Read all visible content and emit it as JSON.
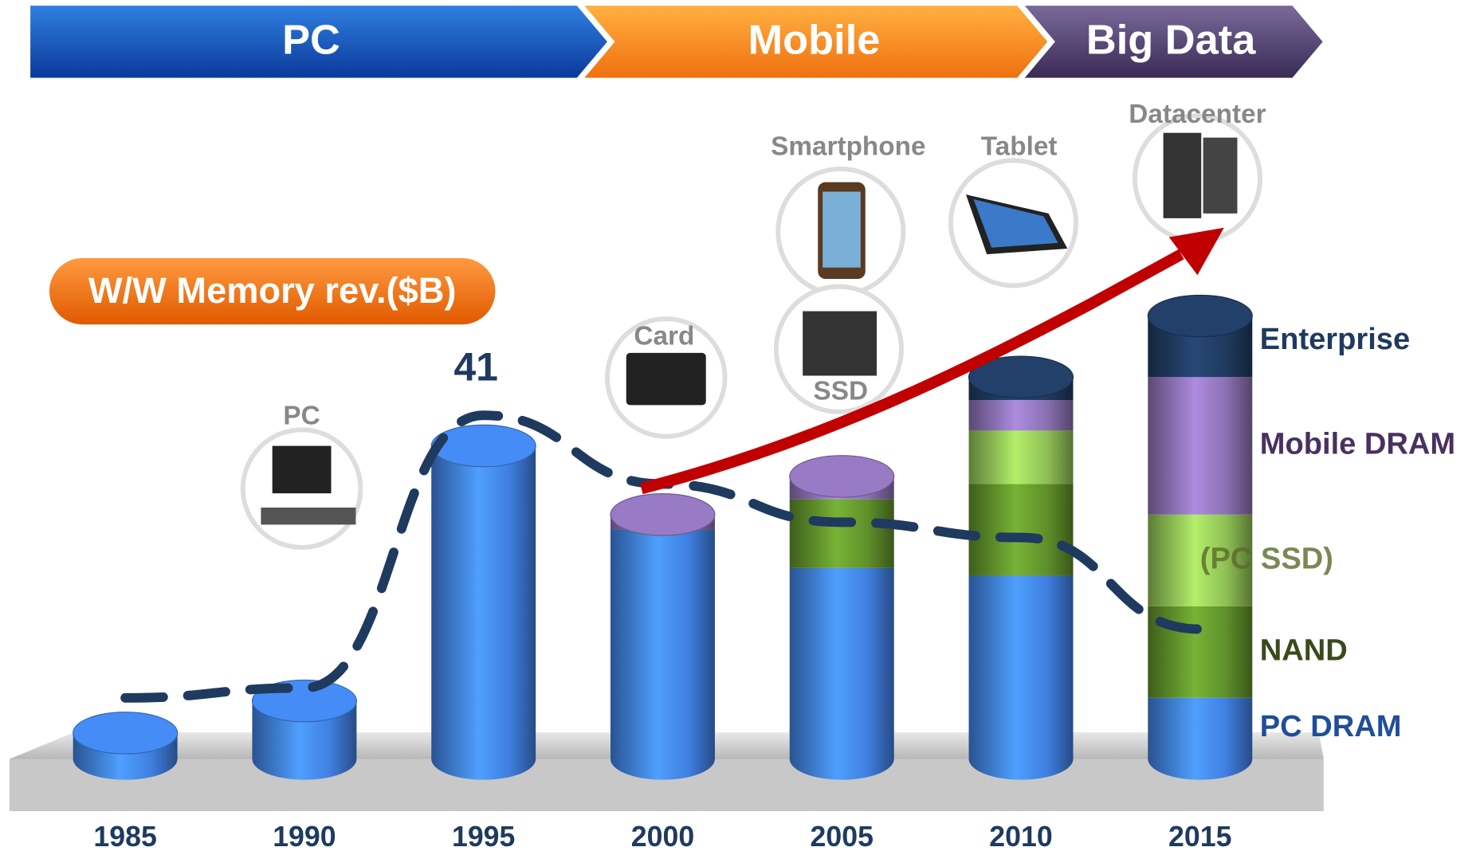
{
  "chart_data": {
    "type": "bar",
    "eras": [
      "PC",
      "Mobile",
      "Big Data"
    ],
    "annotation": "W/W Memory rev.($B)",
    "icons": [
      "PC",
      "Card",
      "Smartphone",
      "SSD",
      "Tablet",
      "Datacenter"
    ],
    "categories": [
      "1985",
      "1990",
      "1995",
      "2000",
      "2005",
      "2010",
      "2015"
    ],
    "series": [
      {
        "name": "PC DRAM",
        "color": "#3f7fe0",
        "text_color": "#1f4e9a",
        "values": [
          3.4,
          7.6,
          41,
          30,
          25,
          24,
          8
        ],
        "value_labels": [
          null,
          null,
          "41",
          null,
          null,
          null,
          null
        ]
      },
      {
        "name": "NAND",
        "color": "#5f8f2a",
        "text_color": "#3a4a1a",
        "values": [
          0,
          0,
          0,
          0,
          9,
          12,
          12
        ]
      },
      {
        "name": "(PC SSD)",
        "color": "#8fbf55",
        "text_color": "#5a6a2a",
        "values": [
          0,
          0,
          0,
          0,
          0,
          7,
          12
        ]
      },
      {
        "name": "Mobile DRAM",
        "color": "#8a70b2",
        "text_color": "#4a3060",
        "values": [
          0,
          0,
          0,
          2,
          3,
          4,
          18
        ]
      },
      {
        "name": "Enterprise",
        "color": "#1f3a5f",
        "text_color": "#1f3a5f",
        "values": [
          0,
          0,
          0,
          0,
          0,
          3,
          8
        ]
      }
    ],
    "dashed_line": {
      "color": "#1f3a5f",
      "values": [
        8,
        9.3,
        45,
        36,
        31,
        29,
        17
      ]
    }
  }
}
